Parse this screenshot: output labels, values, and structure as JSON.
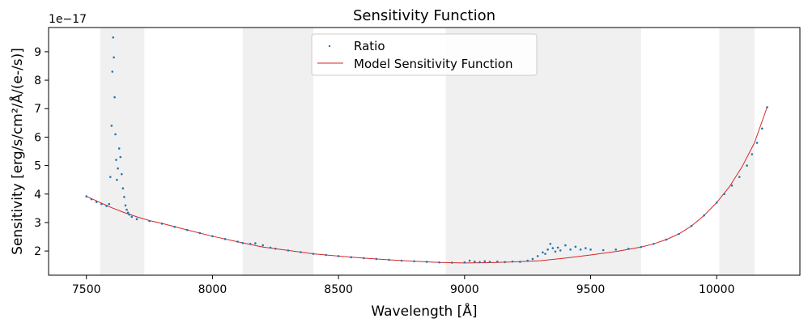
{
  "chart_data": {
    "type": "scatter",
    "title": "Sensitivity Function",
    "xlabel": "Wavelength [Å]",
    "ylabel": "Sensitivity [erg/s/cm²/Å/(e-/s)]",
    "y_offset_text": "1e−17",
    "xlim": [
      7350,
      10330
    ],
    "ylim": [
      1.15,
      9.85
    ],
    "x_ticks": [
      7500,
      8000,
      8500,
      9000,
      9500,
      10000
    ],
    "x_tick_labels": [
      "7500",
      "8000",
      "8500",
      "9000",
      "9500",
      "10000"
    ],
    "y_ticks": [
      2,
      3,
      4,
      5,
      6,
      7,
      8,
      9
    ],
    "y_tick_labels": [
      "2",
      "3",
      "4",
      "5",
      "6",
      "7",
      "8",
      "9"
    ],
    "masked_regions": [
      [
        7555,
        7730
      ],
      [
        8120,
        8400
      ],
      [
        8925,
        9700
      ],
      [
        10010,
        10150
      ]
    ],
    "masked_color": "#f0f0f0",
    "legend": {
      "position": "upper-center",
      "entries": [
        {
          "label": "Ratio",
          "marker": "dot",
          "color": "#1f77b4"
        },
        {
          "label": "Model Sensitivity Function",
          "marker": "line",
          "color": "#d62728"
        }
      ]
    },
    "series": [
      {
        "name": "Model Sensitivity Function",
        "kind": "line",
        "color": "#d62728",
        "x": [
          7500,
          7550,
          7600,
          7650,
          7700,
          7750,
          7800,
          7900,
          8000,
          8100,
          8200,
          8300,
          8400,
          8500,
          8600,
          8700,
          8800,
          8900,
          9000,
          9100,
          9200,
          9300,
          9400,
          9500,
          9600,
          9700,
          9750,
          9800,
          9850,
          9900,
          9950,
          10000,
          10050,
          10100,
          10150,
          10200
        ],
        "y": [
          3.92,
          3.72,
          3.52,
          3.35,
          3.2,
          3.07,
          2.97,
          2.74,
          2.52,
          2.32,
          2.14,
          2.02,
          1.9,
          1.82,
          1.75,
          1.69,
          1.64,
          1.6,
          1.58,
          1.59,
          1.62,
          1.66,
          1.75,
          1.86,
          1.98,
          2.14,
          2.25,
          2.4,
          2.6,
          2.88,
          3.25,
          3.7,
          4.25,
          4.95,
          5.8,
          7.05
        ]
      },
      {
        "name": "Ratio",
        "kind": "scatter",
        "color": "#1f77b4",
        "x": [
          7500,
          7520,
          7540,
          7560,
          7580,
          7590,
          7595,
          7600,
          7603,
          7606,
          7609,
          7612,
          7615,
          7618,
          7621,
          7625,
          7630,
          7635,
          7640,
          7645,
          7650,
          7655,
          7660,
          7665,
          7670,
          7680,
          7700,
          7750,
          7800,
          7850,
          7900,
          7950,
          8000,
          8050,
          8100,
          8120,
          8150,
          8170,
          8200,
          8230,
          8250,
          8300,
          8350,
          8400,
          8450,
          8500,
          8550,
          8600,
          8650,
          8700,
          8750,
          8800,
          8850,
          8900,
          8950,
          9000,
          9020,
          9040,
          9060,
          9080,
          9100,
          9130,
          9160,
          9190,
          9220,
          9250,
          9270,
          9290,
          9310,
          9320,
          9330,
          9340,
          9350,
          9360,
          9370,
          9380,
          9400,
          9420,
          9440,
          9460,
          9480,
          9500,
          9550,
          9600,
          9650,
          9700,
          9750,
          9800,
          9850,
          9900,
          9950,
          10000,
          10030,
          10060,
          10090,
          10120,
          10140,
          10160,
          10180,
          10200
        ],
        "y": [
          3.92,
          3.82,
          3.72,
          3.65,
          3.58,
          3.65,
          4.6,
          6.4,
          8.3,
          9.5,
          8.8,
          7.4,
          6.1,
          5.2,
          4.5,
          4.9,
          5.6,
          5.3,
          4.7,
          4.2,
          3.9,
          3.6,
          3.45,
          3.35,
          3.28,
          3.2,
          3.12,
          3.05,
          2.96,
          2.85,
          2.74,
          2.63,
          2.52,
          2.42,
          2.33,
          2.28,
          2.25,
          2.27,
          2.2,
          2.12,
          2.08,
          2.02,
          1.96,
          1.9,
          1.86,
          1.82,
          1.78,
          1.75,
          1.72,
          1.69,
          1.66,
          1.64,
          1.62,
          1.6,
          1.59,
          1.6,
          1.66,
          1.63,
          1.61,
          1.64,
          1.62,
          1.63,
          1.61,
          1.63,
          1.62,
          1.66,
          1.72,
          1.82,
          1.95,
          1.9,
          2.05,
          2.25,
          2.1,
          1.98,
          2.12,
          2.02,
          2.2,
          2.05,
          2.15,
          2.05,
          2.1,
          2.05,
          2.03,
          2.05,
          2.08,
          2.14,
          2.25,
          2.4,
          2.6,
          2.88,
          3.25,
          3.7,
          4.0,
          4.3,
          4.6,
          5.0,
          5.4,
          5.8,
          6.3,
          7.05
        ]
      }
    ]
  }
}
